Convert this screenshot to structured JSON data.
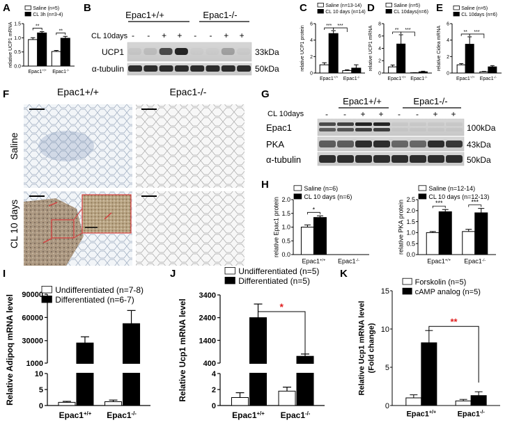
{
  "figure": {
    "panel_letters": [
      "A",
      "B",
      "C",
      "D",
      "E",
      "F",
      "G",
      "H",
      "I",
      "J",
      "K"
    ],
    "panel_A": {
      "ylabel": "relative UCP1 mRNA",
      "legend": [
        "Saline (n=5)",
        "CL 3h (n=3-4)"
      ],
      "groups": [
        "Epac1+/+",
        "Epac1-/-"
      ],
      "sig": [
        "**",
        "**"
      ]
    },
    "panel_B": {
      "genotypes": [
        "Epac1+/+",
        "Epac1-/-"
      ],
      "treatment_label": "CL 10days",
      "lane_signs": [
        "-",
        "-",
        "+",
        "+",
        "-",
        "-",
        "+",
        "+"
      ],
      "bands": [
        "UCP1",
        "α-tubulin"
      ],
      "sizes": [
        "33kDa",
        "50kDa"
      ]
    },
    "panel_C": {
      "ylabel": "relative UCP1 protein",
      "legend": [
        "Saline (n=13-14)",
        "CL 10 days (n=14)"
      ],
      "groups": [
        "Epac1+/+",
        "Epac1-/-"
      ],
      "sig": [
        "***",
        "***"
      ]
    },
    "panel_D": {
      "ylabel": "relative UCP1 mRNA",
      "legend": [
        "Saline (n=5)",
        "CL 10days(n=6)"
      ],
      "groups": [
        "Epac1+/+",
        "Epac1-/-"
      ],
      "sig": [
        "**",
        "***"
      ]
    },
    "panel_E": {
      "ylabel": "relative Cidea mRNA",
      "legend": [
        "Saline (n=5)",
        "CL 10days (n=6)"
      ],
      "groups": [
        "Epac1+/+",
        "Epac1-/-"
      ],
      "sig": [
        "**",
        "***"
      ]
    },
    "panel_F": {
      "col_labels": [
        "Epac1+/+",
        "Epac1-/-"
      ],
      "row_labels": [
        "Saline",
        "CL 10 days"
      ]
    },
    "panel_G": {
      "genotypes": [
        "Epac1+/+",
        "Epac1-/-"
      ],
      "treatment_label": "CL 10days",
      "lane_signs": [
        "-",
        "-",
        "+",
        "+",
        "-",
        "-",
        "+",
        "+"
      ],
      "bands": [
        "Epac1",
        "PKA",
        "α-tubulin"
      ],
      "sizes": [
        "100kDa",
        "43kDa",
        "50kDa"
      ]
    },
    "panel_H_left": {
      "ylabel": "relative Epac1 protein",
      "legend": [
        "Saline (n=6)",
        "CL 10 days (n=6)"
      ],
      "groups": [
        "Epac1+/+",
        "Epac1-/-"
      ],
      "sig": [
        "*"
      ]
    },
    "panel_H_right": {
      "ylabel": "relative PKA protein",
      "legend": [
        "Saline (n=12-14)",
        "CL 10 days (n=12-13)"
      ],
      "groups": [
        "Epac1+/+",
        "Epac1-/-"
      ],
      "sig": [
        "***",
        "***"
      ]
    },
    "panel_I": {
      "ylabel": "Relative Adipoq mRNA level",
      "legend": [
        "Undifferentiated (n=7-8)",
        "Differentiated (n=6-7)"
      ],
      "groups": [
        "Epac1+/+",
        "Epac1-/-"
      ]
    },
    "panel_J": {
      "ylabel": "Relative Ucp1 mRNA level",
      "legend": [
        "Undifferentiated (n=5)",
        "Differentiated (n=5)"
      ],
      "groups": [
        "Epac1+/+",
        "Epac1-/-"
      ],
      "sig": [
        "*"
      ]
    },
    "panel_K": {
      "ylabel": "Relative Ucp1 mRNA level",
      "ylabel2": "(Fold change)",
      "legend": [
        "Forskolin (n=5)",
        "cAMP analog (n=5)"
      ],
      "groups": [
        "Epac1+/+",
        "Epac1-/-"
      ],
      "sig": [
        "**"
      ]
    }
  },
  "chart_data": [
    {
      "panel": "A",
      "type": "bar",
      "categories": [
        "Epac1+/+",
        "Epac1-/-"
      ],
      "ylabel": "relative UCP1 mRNA",
      "ylim": [
        0,
        1.6
      ],
      "yticks": [
        "0.0",
        "0.5",
        "1.0",
        "1.5"
      ],
      "series": [
        {
          "name": "Saline (n=5)",
          "values": [
            1.0,
            0.55
          ],
          "err": [
            0.07,
            0.04
          ]
        },
        {
          "name": "CL 3h (n=3-4)",
          "values": [
            1.25,
            1.05
          ],
          "err": [
            0.05,
            0.07
          ]
        }
      ]
    },
    {
      "panel": "C",
      "type": "bar",
      "categories": [
        "Epac1+/+",
        "Epac1-/-"
      ],
      "ylabel": "relative UCP1 protein",
      "ylim": [
        0,
        6
      ],
      "yticks": [
        "0",
        "2",
        "4",
        "6"
      ],
      "series": [
        {
          "name": "Saline (n=13-14)",
          "values": [
            1.0,
            0.3
          ],
          "err": [
            0.25,
            0.1
          ]
        },
        {
          "name": "CL 10 days (n=14)",
          "values": [
            4.8,
            0.6
          ],
          "err": [
            0.35,
            0.4
          ]
        }
      ]
    },
    {
      "panel": "D",
      "type": "bar",
      "categories": [
        "Epac1+/+",
        "Epac1-/-"
      ],
      "ylabel": "relative UCP1 mRNA",
      "ylim": [
        0,
        8
      ],
      "yticks": [
        "0",
        "2",
        "4",
        "6",
        "8"
      ],
      "series": [
        {
          "name": "Saline (n=5)",
          "values": [
            1.0,
            0.05
          ],
          "err": [
            0.3,
            0.02
          ]
        },
        {
          "name": "CL 10days(n=6)",
          "values": [
            4.7,
            0.2
          ],
          "err": [
            1.5,
            0.1
          ]
        }
      ]
    },
    {
      "panel": "E",
      "type": "bar",
      "categories": [
        "Epac1+/+",
        "Epac1-/-"
      ],
      "ylabel": "relative Cidea mRNA",
      "ylim": [
        0,
        6
      ],
      "yticks": [
        "0",
        "2",
        "4",
        "6"
      ],
      "series": [
        {
          "name": "Saline (n=5)",
          "values": [
            1.0,
            0.15
          ],
          "err": [
            0.15,
            0.05
          ]
        },
        {
          "name": "CL 10days (n=6)",
          "values": [
            3.5,
            0.75
          ],
          "err": [
            0.9,
            0.15
          ]
        }
      ]
    },
    {
      "panel": "H-left",
      "type": "bar",
      "categories": [
        "Epac1+/+",
        "Epac1-/-"
      ],
      "ylabel": "relative Epac1 protein",
      "ylim": [
        0,
        2.0
      ],
      "yticks": [
        "0.0",
        "0.5",
        "1.0",
        "1.5",
        "2.0"
      ],
      "series": [
        {
          "name": "Saline (n=6)",
          "values": [
            1.0,
            0
          ],
          "err": [
            0.08,
            0
          ]
        },
        {
          "name": "CL 10 days (n=6)",
          "values": [
            1.35,
            0
          ],
          "err": [
            0.06,
            0
          ]
        }
      ]
    },
    {
      "panel": "H-right",
      "type": "bar",
      "categories": [
        "Epac1+/+",
        "Epac1-/-"
      ],
      "ylabel": "relative PKA protein",
      "ylim": [
        0,
        2.5
      ],
      "yticks": [
        "0.0",
        "0.5",
        "1.0",
        "1.5",
        "2.0",
        "2.5"
      ],
      "series": [
        {
          "name": "Saline (n=12-14)",
          "values": [
            1.0,
            1.05
          ],
          "err": [
            0.05,
            0.1
          ]
        },
        {
          "name": "CL 10 days (n=12-13)",
          "values": [
            1.95,
            1.9
          ],
          "err": [
            0.1,
            0.2
          ]
        }
      ]
    },
    {
      "panel": "I",
      "type": "bar",
      "categories": [
        "Epac1+/+",
        "Epac1-/-"
      ],
      "ylabel": "Relative Adipoq mRNA level",
      "yticks": [
        "0",
        "5",
        "10",
        "1000",
        "30000",
        "60000",
        "90000"
      ],
      "series": [
        {
          "name": "Undifferentiated (n=7-8)",
          "values": [
            1.0,
            1.2
          ],
          "err": [
            0.3,
            0.5
          ]
        },
        {
          "name": "Differentiated (n=6-7)",
          "values": [
            27000,
            52000
          ],
          "err": [
            8000,
            17000
          ]
        }
      ]
    },
    {
      "panel": "J",
      "type": "bar",
      "categories": [
        "Epac1+/+",
        "Epac1-/-"
      ],
      "ylabel": "Relative Ucp1 mRNA level",
      "yticks": [
        "0",
        "2",
        "4",
        "400",
        "1400",
        "2400",
        "3400"
      ],
      "series": [
        {
          "name": "Undifferentiated (n=5)",
          "values": [
            1.0,
            1.8
          ],
          "err": [
            0.6,
            0.5
          ]
        },
        {
          "name": "Differentiated (n=5)",
          "values": [
            2400,
            700
          ],
          "err": [
            600,
            100
          ]
        }
      ]
    },
    {
      "panel": "K",
      "type": "bar",
      "categories": [
        "Epac1+/+",
        "Epac1-/-"
      ],
      "ylabel": "Relative Ucp1 mRNA level (Fold change)",
      "ylim": [
        0,
        15
      ],
      "yticks": [
        "0",
        "5",
        "10",
        "15"
      ],
      "series": [
        {
          "name": "Forskolin (n=5)",
          "values": [
            1.0,
            0.6
          ],
          "err": [
            0.4,
            0.2
          ]
        },
        {
          "name": "cAMP analog (n=5)",
          "values": [
            8.2,
            1.3
          ],
          "err": [
            1.6,
            0.5
          ]
        }
      ]
    }
  ]
}
